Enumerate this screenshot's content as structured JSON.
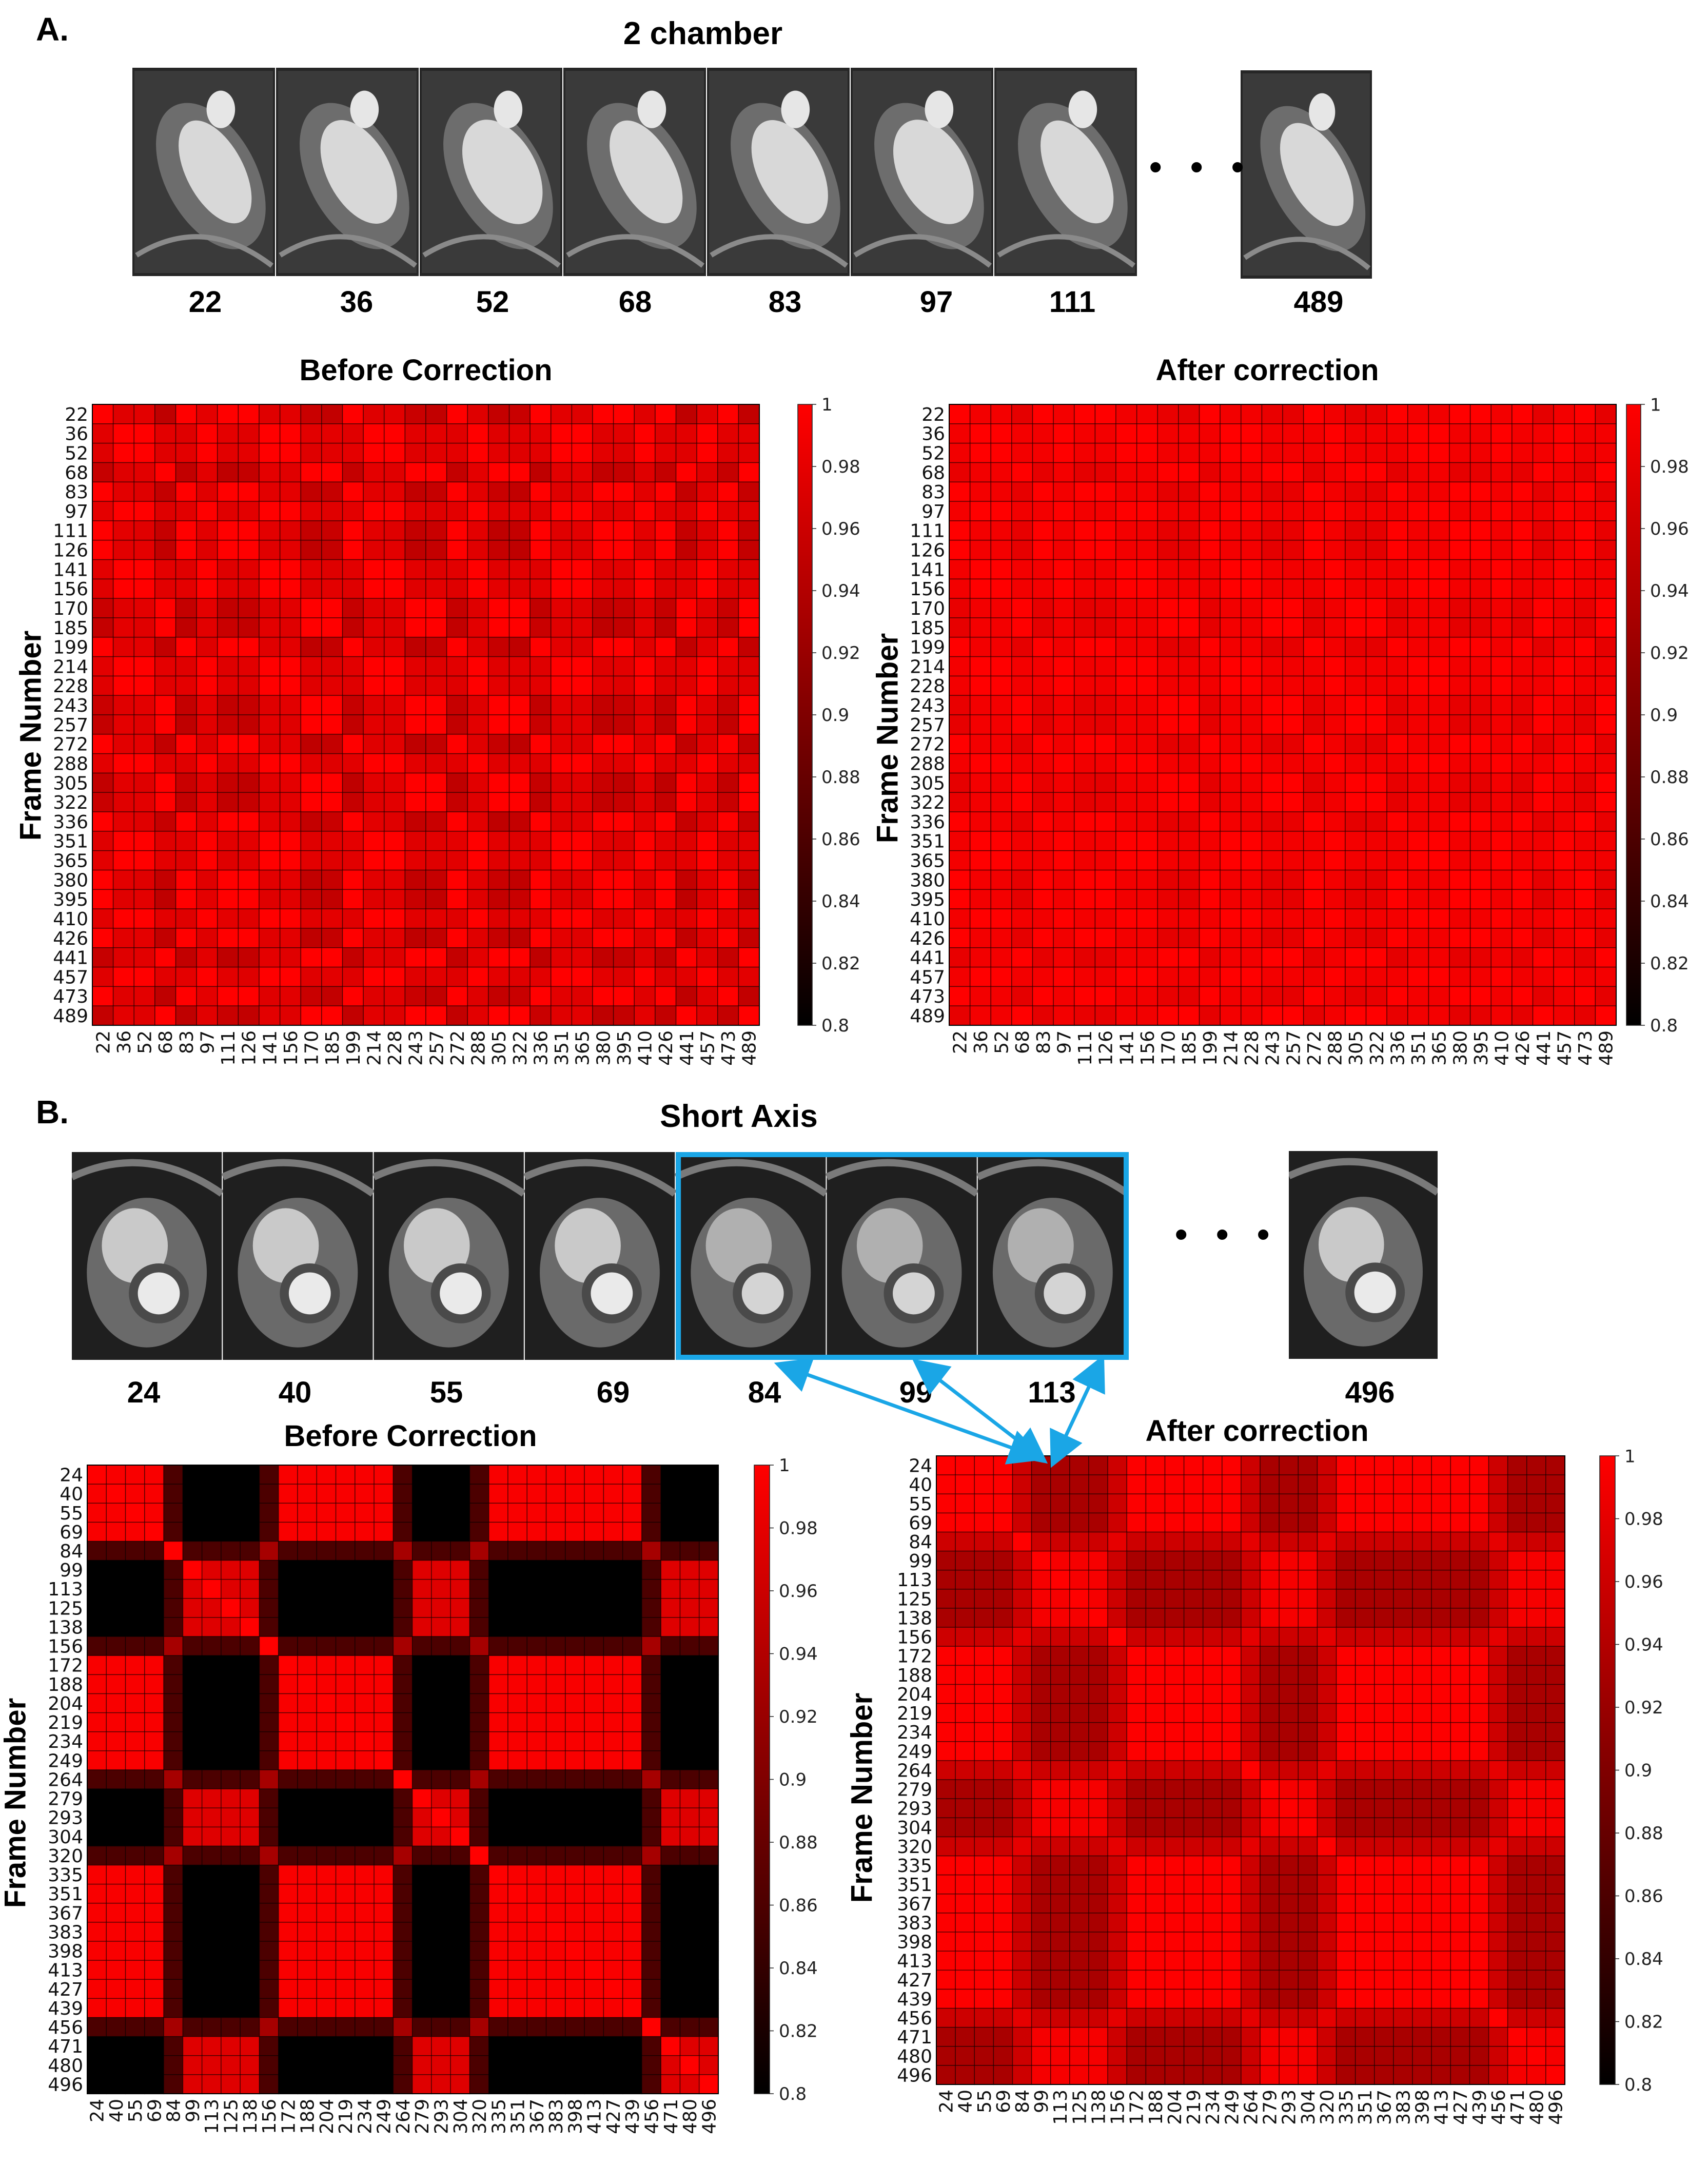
{
  "colors": {
    "highlight_box": "#1aa6e6",
    "colormap_low": "#000000",
    "colormap_high": "#ff0000"
  },
  "panels": {
    "A": {
      "label": "A.",
      "title": "2 chamber",
      "strip_labels": [
        "22",
        "36",
        "52",
        "68",
        "83",
        "97",
        "111",
        "489"
      ],
      "ellipsis": "• • •"
    },
    "B": {
      "label": "B.",
      "title": "Short Axis",
      "strip_labels": [
        "24",
        "40",
        "55",
        "69",
        "84",
        "99",
        "113",
        "496"
      ],
      "ellipsis": "• • •"
    }
  },
  "chart_data": [
    {
      "id": "A-before",
      "type": "heatmap",
      "title": "Before Correction",
      "ylabel": "Frame Number",
      "frames": [
        "22",
        "36",
        "52",
        "68",
        "83",
        "97",
        "111",
        "126",
        "141",
        "156",
        "170",
        "185",
        "199",
        "214",
        "228",
        "243",
        "257",
        "272",
        "288",
        "305",
        "322",
        "336",
        "351",
        "365",
        "380",
        "395",
        "410",
        "426",
        "441",
        "457",
        "473",
        "489"
      ],
      "groups": [
        0,
        1,
        1,
        2,
        0,
        1,
        0,
        0,
        1,
        1,
        2,
        2,
        0,
        1,
        1,
        2,
        2,
        0,
        1,
        2,
        2,
        0,
        1,
        1,
        0,
        0,
        1,
        0,
        2,
        1,
        0,
        2
      ],
      "pattern": "block",
      "strength": 0.05,
      "colorbar": {
        "min": 0.8,
        "max": 1,
        "ticks": [
          "1",
          "0.98",
          "0.96",
          "0.94",
          "0.92",
          "0.9",
          "0.88",
          "0.86",
          "0.84",
          "0.82",
          "0.8"
        ]
      }
    },
    {
      "id": "A-after",
      "type": "heatmap",
      "title": "After correction",
      "ylabel": "Frame Number",
      "frames": [
        "22",
        "36",
        "52",
        "68",
        "83",
        "97",
        "111",
        "126",
        "141",
        "156",
        "170",
        "185",
        "199",
        "214",
        "228",
        "243",
        "257",
        "272",
        "288",
        "305",
        "322",
        "336",
        "351",
        "365",
        "380",
        "395",
        "410",
        "426",
        "441",
        "457",
        "473",
        "489"
      ],
      "groups": [
        0,
        1,
        1,
        2,
        0,
        1,
        0,
        0,
        1,
        1,
        2,
        2,
        0,
        1,
        1,
        2,
        2,
        0,
        1,
        2,
        2,
        0,
        1,
        1,
        0,
        0,
        1,
        0,
        2,
        1,
        0,
        2
      ],
      "pattern": "block",
      "strength": 0.02,
      "colorbar": {
        "min": 0.8,
        "max": 1,
        "ticks": [
          "1",
          "0.98",
          "0.96",
          "0.94",
          "0.92",
          "0.9",
          "0.88",
          "0.86",
          "0.84",
          "0.82",
          "0.8"
        ]
      }
    },
    {
      "id": "B-before",
      "type": "heatmap",
      "title": "Before Correction",
      "ylabel": "Frame Number",
      "frames": [
        "24",
        "40",
        "55",
        "69",
        "84",
        "99",
        "113",
        "125",
        "138",
        "156",
        "172",
        "188",
        "204",
        "219",
        "234",
        "249",
        "264",
        "279",
        "293",
        "304",
        "320",
        "335",
        "351",
        "367",
        "383",
        "398",
        "413",
        "427",
        "439",
        "456",
        "471",
        "480",
        "496"
      ],
      "states": [
        "D",
        "D",
        "D",
        "D",
        "T",
        "S",
        "S",
        "S",
        "S",
        "T",
        "D",
        "D",
        "D",
        "D",
        "D",
        "D",
        "T",
        "S",
        "S",
        "S",
        "T",
        "D",
        "D",
        "D",
        "D",
        "D",
        "D",
        "D",
        "D",
        "T",
        "S",
        "S",
        "S"
      ],
      "pattern": "cardiac",
      "strength": 1.0,
      "colorbar": {
        "min": 0.8,
        "max": 1,
        "ticks": [
          "1",
          "0.98",
          "0.96",
          "0.94",
          "0.92",
          "0.9",
          "0.88",
          "0.86",
          "0.84",
          "0.82",
          "0.8"
        ]
      }
    },
    {
      "id": "B-after",
      "type": "heatmap",
      "title": "After correction",
      "ylabel": "Frame Number",
      "frames": [
        "24",
        "40",
        "55",
        "69",
        "84",
        "99",
        "113",
        "125",
        "138",
        "156",
        "172",
        "188",
        "204",
        "219",
        "234",
        "249",
        "264",
        "279",
        "293",
        "304",
        "320",
        "335",
        "351",
        "367",
        "383",
        "398",
        "413",
        "427",
        "439",
        "456",
        "471",
        "480",
        "496"
      ],
      "states": [
        "D",
        "D",
        "D",
        "D",
        "T",
        "S",
        "S",
        "S",
        "S",
        "T",
        "D",
        "D",
        "D",
        "D",
        "D",
        "D",
        "T",
        "S",
        "S",
        "S",
        "T",
        "D",
        "D",
        "D",
        "D",
        "D",
        "D",
        "D",
        "D",
        "T",
        "S",
        "S",
        "S"
      ],
      "pattern": "cardiac",
      "strength": 0.28,
      "colorbar": {
        "min": 0.8,
        "max": 1,
        "ticks": [
          "1",
          "0.98",
          "0.96",
          "0.94",
          "0.92",
          "0.9",
          "0.88",
          "0.86",
          "0.84",
          "0.82",
          "0.8"
        ]
      }
    }
  ]
}
